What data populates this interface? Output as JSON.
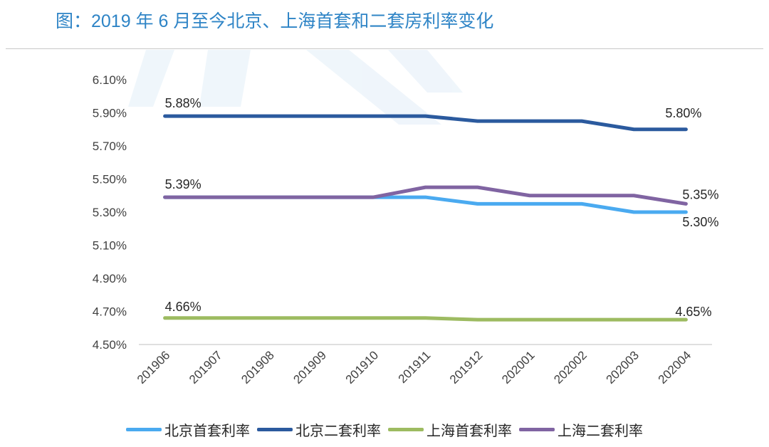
{
  "title": "图：2019 年 6 月至今北京、上海首套和二套房利率变化",
  "chart_data": {
    "type": "line",
    "title": "图：2019 年 6 月至今北京、上海首套和二套房利率变化",
    "categories": [
      "201906",
      "201907",
      "201908",
      "201909",
      "201910",
      "201911",
      "201912",
      "202001",
      "202002",
      "202003",
      "202004"
    ],
    "yticks": [
      "6.10%",
      "5.90%",
      "5.70%",
      "5.50%",
      "5.30%",
      "5.10%",
      "4.90%",
      "4.70%",
      "4.50%"
    ],
    "ylim": [
      4.5,
      6.1
    ],
    "series": [
      {
        "name": "北京首套利率",
        "color": "#4aaaf0",
        "values": [
          5.39,
          5.39,
          5.39,
          5.39,
          5.39,
          5.39,
          5.35,
          5.35,
          5.35,
          5.3,
          5.3
        ]
      },
      {
        "name": "北京二套利率",
        "color": "#2b5a9e",
        "values": [
          5.88,
          5.88,
          5.88,
          5.88,
          5.88,
          5.88,
          5.85,
          5.85,
          5.85,
          5.8,
          5.8
        ]
      },
      {
        "name": "上海首套利率",
        "color": "#9dbb61",
        "values": [
          4.66,
          4.66,
          4.66,
          4.66,
          4.66,
          4.66,
          4.65,
          4.65,
          4.65,
          4.65,
          4.65
        ]
      },
      {
        "name": "上海二套利率",
        "color": "#8064a2",
        "values": [
          5.39,
          5.39,
          5.39,
          5.39,
          5.39,
          5.45,
          5.45,
          5.4,
          5.4,
          5.4,
          5.35
        ]
      }
    ],
    "data_labels": [
      {
        "series": 1,
        "index": 0,
        "text": "5.88%"
      },
      {
        "series": 1,
        "index": 10,
        "text": "5.80%"
      },
      {
        "series": 3,
        "index": 0,
        "text": "5.39%"
      },
      {
        "series": 3,
        "index": 10,
        "text": "5.35%"
      },
      {
        "series": 0,
        "index": 10,
        "text": "5.30%"
      },
      {
        "series": 2,
        "index": 0,
        "text": "4.66%"
      },
      {
        "series": 2,
        "index": 10,
        "text": "4.65%"
      }
    ],
    "legend": "bottom"
  }
}
